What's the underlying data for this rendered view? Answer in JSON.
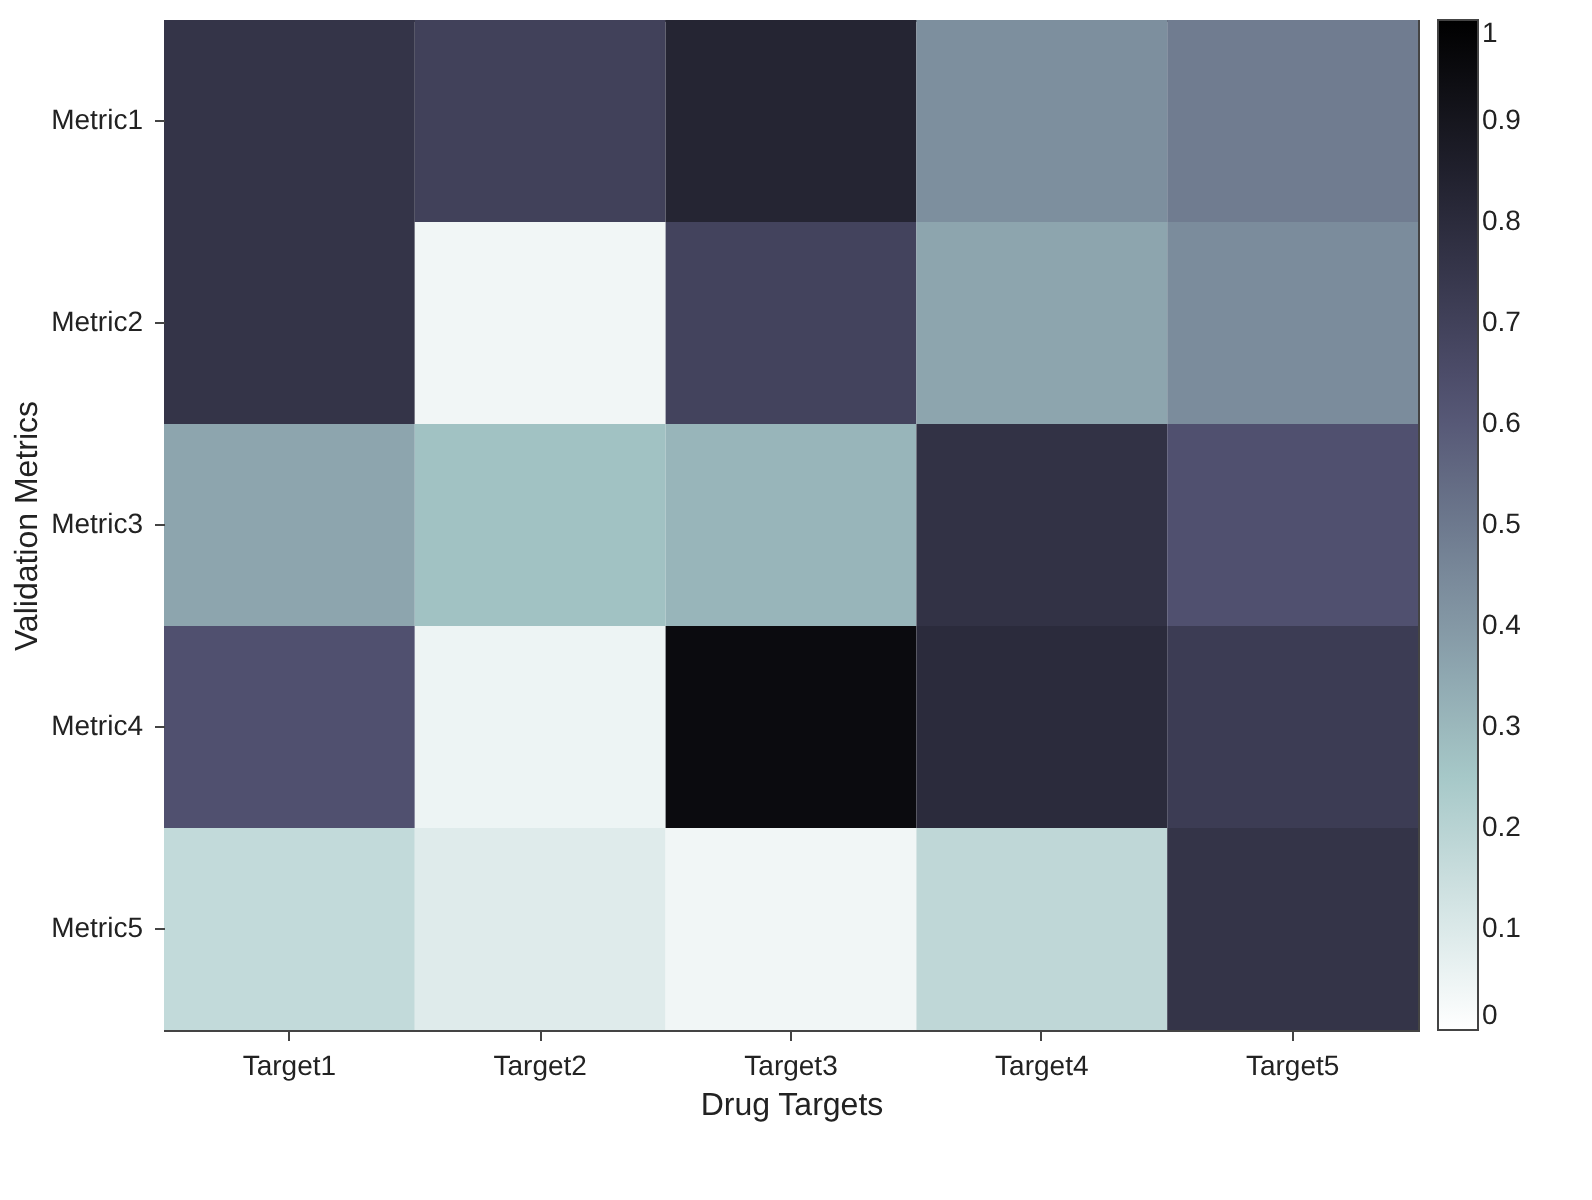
{
  "chart_data": {
    "type": "heatmap",
    "xlabel": "Drug Targets",
    "ylabel": "Validation Metrics",
    "categories": [
      "Target1",
      "Target2",
      "Target3",
      "Target4",
      "Target5"
    ],
    "y_categories": [
      "Metric1",
      "Metric2",
      "Metric3",
      "Metric4",
      "Metric5"
    ],
    "cells": [
      [
        0.76,
        0.7,
        0.83,
        0.43,
        0.49
      ],
      [
        0.76,
        0.04,
        0.69,
        0.36,
        0.44
      ],
      [
        0.36,
        0.27,
        0.31,
        0.77,
        0.63
      ],
      [
        0.63,
        0.05,
        0.95,
        0.8,
        0.72
      ],
      [
        0.17,
        0.09,
        0.04,
        0.18,
        0.76
      ]
    ],
    "clim": [
      0,
      1
    ],
    "cticks": [
      0,
      0.1,
      0.2,
      0.3,
      0.4,
      0.5,
      0.6,
      0.7,
      0.8,
      0.9,
      1
    ]
  }
}
